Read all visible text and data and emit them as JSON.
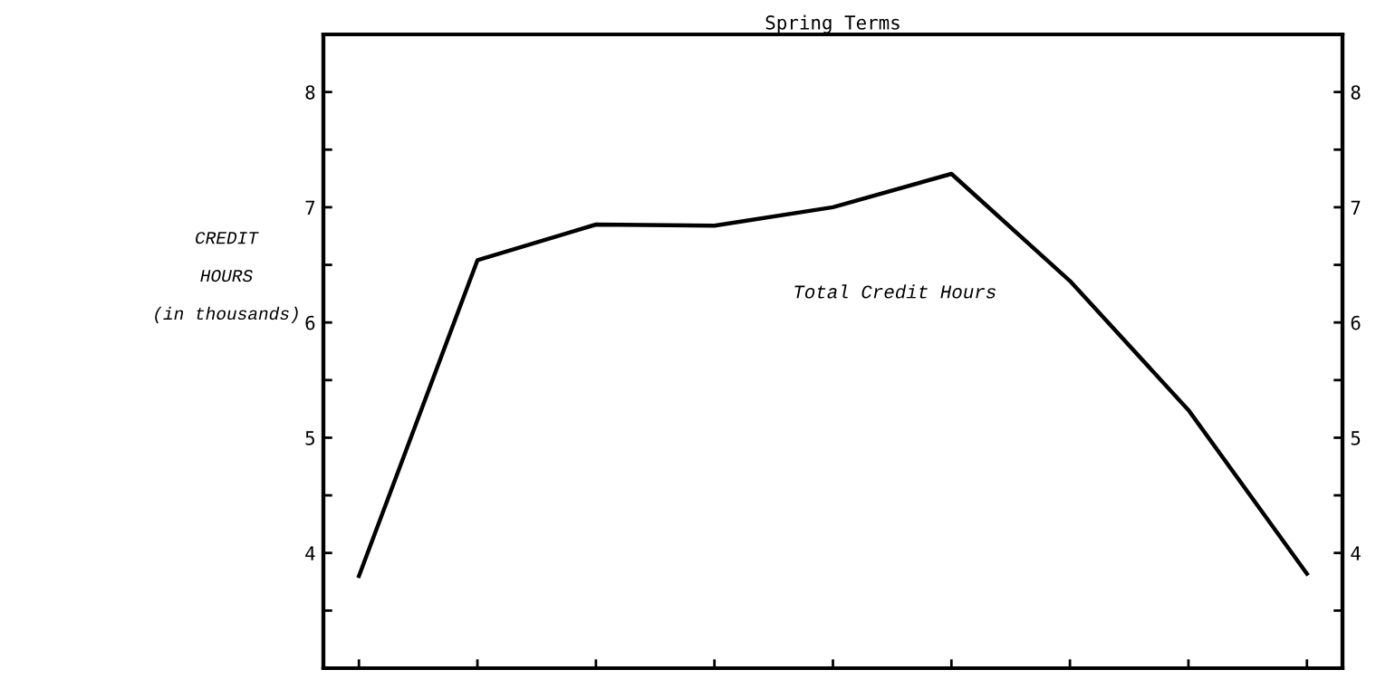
{
  "chart_data": {
    "type": "line",
    "title": "Spring Terms",
    "ylabel": "CREDIT\n\nHOURS\n\n(in thousands)",
    "categories": [
      null,
      null,
      null,
      null,
      null,
      null,
      null,
      null,
      null
    ],
    "series": [
      {
        "name": "Total Credit Hours",
        "color": "#000000",
        "values": [
          3.8,
          6.54,
          6.85,
          6.84,
          7.0,
          7.29,
          6.36,
          5.24,
          3.82
        ]
      }
    ],
    "ylim": [
      3,
      8.5
    ],
    "yticks": [
      {
        "value": 3.5,
        "label": null
      },
      4,
      {
        "value": 4.5,
        "label": null
      },
      5,
      {
        "value": 5.5,
        "label": null
      },
      6,
      {
        "value": 6.5,
        "label": null
      },
      7,
      {
        "value": 7.5,
        "label": null
      },
      8
    ],
    "y2lim": [
      3,
      8.5
    ],
    "y2ticks": [
      {
        "value": 3.5,
        "label": null
      },
      4,
      {
        "value": 4.5,
        "label": null
      },
      5,
      {
        "value": 5.5,
        "label": null
      },
      6,
      {
        "value": 6.5,
        "label": null
      },
      7,
      {
        "value": 7.5,
        "label": null
      },
      8
    ],
    "grid": false,
    "marker": "none",
    "line_style": "solid"
  }
}
